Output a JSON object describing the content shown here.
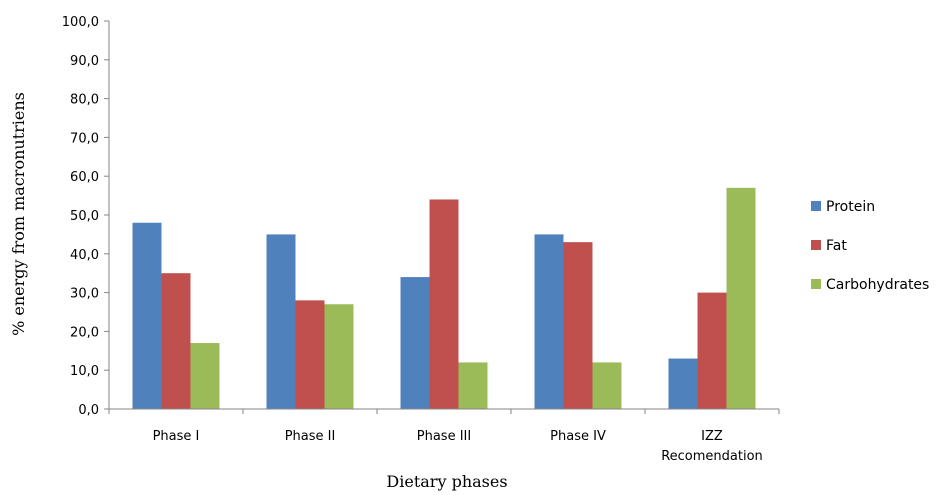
{
  "chart_data": {
    "type": "bar",
    "title": "",
    "xlabel": "Dietary phases",
    "ylabel": "% energy from macronutriens",
    "categories": [
      [
        "Phase I"
      ],
      [
        "Phase II"
      ],
      [
        "Phase III"
      ],
      [
        "Phase IV"
      ],
      [
        "IZZ",
        "Recomendation"
      ]
    ],
    "series": [
      {
        "name": "Protein",
        "color": "#4f81bd",
        "values": [
          48,
          45,
          34,
          45,
          13
        ]
      },
      {
        "name": "Fat",
        "color": "#c0504d",
        "values": [
          35,
          28,
          54,
          43,
          30
        ]
      },
      {
        "name": "Carbohydrates",
        "color": "#9bbb59",
        "values": [
          17,
          27,
          12,
          12,
          57
        ]
      }
    ],
    "ylim": [
      0,
      100
    ],
    "yticks": [
      "0,0",
      "10,0",
      "20,0",
      "30,0",
      "40,0",
      "50,0",
      "60,0",
      "70,0",
      "80,0",
      "90,0",
      "100,0"
    ],
    "grid": false,
    "legend": "right"
  }
}
